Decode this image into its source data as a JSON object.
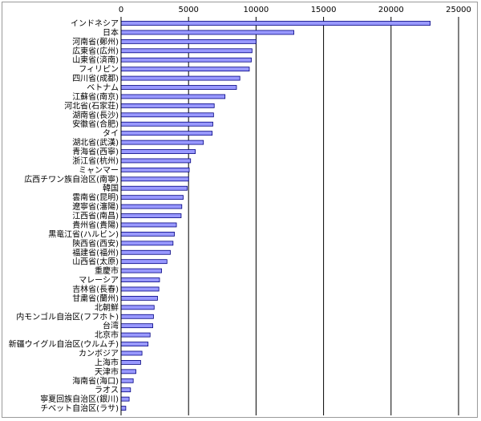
{
  "chart_data": {
    "type": "bar",
    "orientation": "horizontal",
    "xlim": [
      0,
      25000
    ],
    "x_ticks": [
      "0",
      "5000",
      "10000",
      "15000",
      "20000",
      "25000"
    ],
    "x_tick_values": [
      0,
      5000,
      10000,
      15000,
      20000,
      25000
    ],
    "grid": "vertical",
    "bar_color": "#9999ff",
    "bar_edge_color": "#000080",
    "grid_color": "#000000",
    "categories": [
      "インドネシア",
      "日本",
      "河南省(鄭州)",
      "広東省(広州)",
      "山東省(済南)",
      "フィリピン",
      "四川省(成都)",
      "ベトナム",
      "江蘇省(南京)",
      "河北省(石家荘)",
      "湖南省(長沙)",
      "安徽省(合肥)",
      "タイ",
      "湖北省(武漢)",
      "青海省(西寧)",
      "浙江省(杭州)",
      "ミャンマー",
      "広西チワン族自治区(南寧)",
      "韓国",
      "雲南省(昆明)",
      "遼寧省(瀋陽)",
      "江西省(南昌)",
      "貴州省(貴陽)",
      "黒竜江省(ハルビン)",
      "陝西省(西安)",
      "福建省(福州)",
      "山西省(太原)",
      "重慶市",
      "マレーシア",
      "吉林省(長春)",
      "甘粛省(蘭州)",
      "北朝鮮",
      "内モンゴル自治区(フフホト)",
      "台湾",
      "北京市",
      "新疆ウイグル自治区(ウルムチ)",
      "カンボジア",
      "上海市",
      "天津市",
      "海南省(海口)",
      "ラオス",
      "寧夏回族自治区(銀川)",
      "チベット自治区(ラサ)"
    ],
    "values": [
      22900,
      12800,
      10000,
      9700,
      9650,
      9500,
      8800,
      8550,
      7700,
      6900,
      6850,
      6800,
      6750,
      6100,
      5500,
      5150,
      5050,
      5000,
      4900,
      4600,
      4500,
      4450,
      4100,
      3950,
      3850,
      3650,
      3400,
      3000,
      2850,
      2800,
      2700,
      2450,
      2400,
      2350,
      2150,
      2000,
      1550,
      1450,
      1100,
      900,
      700,
      600,
      350
    ]
  }
}
